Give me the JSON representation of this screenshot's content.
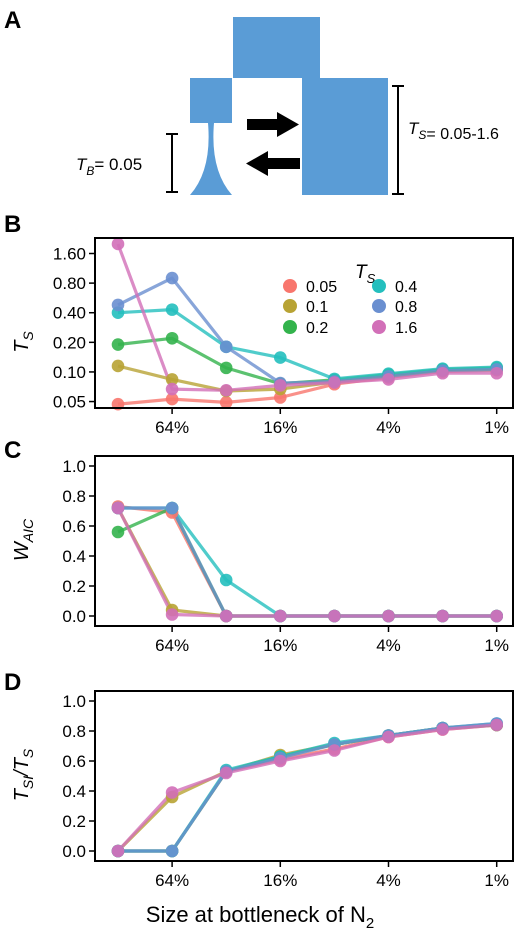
{
  "colors": {
    "s005": "#F8766D",
    "s01": "#B8A334",
    "s02": "#33B34C",
    "s04": "#24BFBE",
    "s08": "#6A8FD0",
    "s16": "#D26FB8",
    "diagram": "#5A9CD6"
  },
  "panelA": {
    "label": "A",
    "tb_label": "T",
    "tb_sub": "B",
    "tb_value": "= 0.05",
    "ts_label": "T",
    "ts_sub": "S",
    "ts_value": "= 0.05-1.6"
  },
  "legend": {
    "title_main": "T",
    "title_sub": "S",
    "items": [
      "0.05",
      "0.4",
      "0.1",
      "0.8",
      "0.2",
      "1.6"
    ]
  },
  "chart_data": [
    {
      "panel": "B",
      "type": "line",
      "ylabel": "T_S",
      "yscale": "log",
      "ylim": [
        0.043,
        2.3
      ],
      "yticks": [
        0.05,
        0.1,
        0.2,
        0.4,
        0.8,
        1.6
      ],
      "ytick_labels": [
        "0.05",
        "0.10",
        "0.20",
        "0.40",
        "0.80",
        "1.60"
      ],
      "x": [
        "100%",
        "64%",
        "36%",
        "16%",
        "9%",
        "4%",
        "2%",
        "1%"
      ],
      "xtick_labels": [
        "64%",
        "16%",
        "4%",
        "1%"
      ],
      "xtick_positions": [
        "64%",
        "16%",
        "4%",
        "1%"
      ],
      "series": [
        {
          "name": "0.05",
          "values": [
            0.047,
            0.053,
            0.049,
            0.055,
            0.075,
            0.088,
            0.101,
            0.104
          ]
        },
        {
          "name": "0.1",
          "values": [
            0.115,
            0.084,
            0.064,
            0.067,
            0.079,
            0.091,
            0.104,
            0.107
          ]
        },
        {
          "name": "0.2",
          "values": [
            0.19,
            0.22,
            0.11,
            0.076,
            0.083,
            0.094,
            0.106,
            0.11
          ]
        },
        {
          "name": "0.4",
          "values": [
            0.4,
            0.43,
            0.18,
            0.14,
            0.085,
            0.096,
            0.108,
            0.112
          ]
        },
        {
          "name": "0.8",
          "values": [
            0.48,
            0.9,
            0.18,
            0.077,
            0.08,
            0.09,
            0.103,
            0.106
          ]
        },
        {
          "name": "1.6",
          "values": [
            2.0,
            0.067,
            0.065,
            0.073,
            0.078,
            0.084,
            0.097,
            0.097
          ]
        }
      ]
    },
    {
      "panel": "C",
      "type": "line",
      "ylabel": "W_AIC",
      "ylim": [
        0,
        1.0
      ],
      "yticks": [
        0,
        0.2,
        0.4,
        0.6,
        0.8,
        1.0
      ],
      "ytick_labels": [
        "0.0",
        "0.2",
        "0.4",
        "0.6",
        "0.8",
        "1.0"
      ],
      "x": [
        "100%",
        "64%",
        "36%",
        "16%",
        "9%",
        "4%",
        "2%",
        "1%"
      ],
      "xtick_labels": [
        "64%",
        "16%",
        "4%",
        "1%"
      ],
      "xtick_positions": [
        "64%",
        "16%",
        "4%",
        "1%"
      ],
      "series": [
        {
          "name": "0.05",
          "values": [
            0.73,
            0.69,
            0.0,
            0.0,
            0.0,
            0.0,
            0.0,
            0.0
          ]
        },
        {
          "name": "0.1",
          "values": [
            0.72,
            0.04,
            0.0,
            0.0,
            0.0,
            0.0,
            0.0,
            0.0
          ]
        },
        {
          "name": "0.2",
          "values": [
            0.56,
            0.72,
            0.0,
            0.0,
            0.0,
            0.0,
            0.0,
            0.0
          ]
        },
        {
          "name": "0.4",
          "values": [
            0.72,
            0.72,
            0.24,
            0.0,
            0.0,
            0.0,
            0.0,
            0.0
          ]
        },
        {
          "name": "0.8",
          "values": [
            0.72,
            0.72,
            0.0,
            0.0,
            0.0,
            0.0,
            0.0,
            0.0
          ]
        },
        {
          "name": "1.6",
          "values": [
            0.72,
            0.01,
            0.0,
            0.0,
            0.0,
            0.0,
            0.0,
            0.0
          ]
        }
      ]
    },
    {
      "panel": "D",
      "type": "line",
      "ylabel": "T_SI/T_S",
      "ylim": [
        0,
        1.0
      ],
      "yticks": [
        0,
        0.2,
        0.4,
        0.6,
        0.8,
        1.0
      ],
      "ytick_labels": [
        "0.0",
        "0.2",
        "0.4",
        "0.6",
        "0.8",
        "1.0"
      ],
      "x": [
        "100%",
        "64%",
        "36%",
        "16%",
        "9%",
        "4%",
        "2%",
        "1%"
      ],
      "xtick_labels": [
        "64%",
        "16%",
        "4%",
        "1%"
      ],
      "xtick_positions": [
        "64%",
        "16%",
        "4%",
        "1%"
      ],
      "xlabel_main": "Size at bottleneck of N",
      "xlabel_sub": "2",
      "series": [
        {
          "name": "0.05",
          "values": [
            0.0,
            0.0,
            0.53,
            0.61,
            0.68,
            0.76,
            0.81,
            0.84
          ]
        },
        {
          "name": "0.1",
          "values": [
            0.0,
            0.36,
            0.53,
            0.64,
            0.71,
            0.77,
            0.82,
            0.84
          ]
        },
        {
          "name": "0.2",
          "values": [
            0.0,
            0.0,
            0.53,
            0.63,
            0.71,
            0.77,
            0.82,
            0.84
          ]
        },
        {
          "name": "0.4",
          "values": [
            0.0,
            0.0,
            0.54,
            0.63,
            0.72,
            0.77,
            0.82,
            0.85
          ]
        },
        {
          "name": "0.8",
          "values": [
            0.0,
            0.0,
            0.53,
            0.62,
            0.71,
            0.77,
            0.82,
            0.85
          ]
        },
        {
          "name": "1.6",
          "values": [
            0.0,
            0.39,
            0.52,
            0.6,
            0.67,
            0.76,
            0.81,
            0.84
          ]
        }
      ]
    }
  ]
}
